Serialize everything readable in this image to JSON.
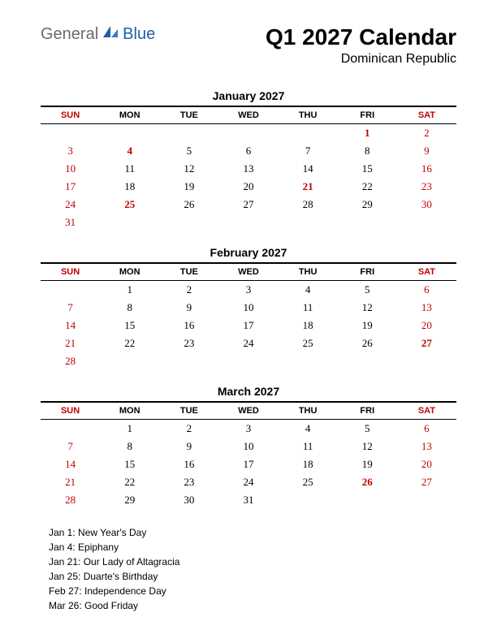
{
  "logo": {
    "text1": "General",
    "text2": "Blue",
    "icon_color": "#1e5fa8",
    "text1_color": "#6a6a6a",
    "text2_color": "#1e5fa8"
  },
  "title": "Q1 2027 Calendar",
  "subtitle": "Dominican Republic",
  "day_headers": [
    "SUN",
    "MON",
    "TUE",
    "WED",
    "THU",
    "FRI",
    "SAT"
  ],
  "colors": {
    "weekend": "#c00000",
    "holiday": "#c00000",
    "text": "#000000",
    "border": "#000000"
  },
  "fonts": {
    "header_family": "Arial",
    "body_family": "Georgia",
    "title_size": 28,
    "month_size": 14,
    "dayhead_size": 11,
    "cell_size": 13,
    "holiday_size": 12
  },
  "months": [
    {
      "name": "January 2027",
      "weeks": [
        [
          null,
          null,
          null,
          null,
          null,
          {
            "d": 1,
            "red": true,
            "bold": true
          },
          {
            "d": 2,
            "red": true
          }
        ],
        [
          {
            "d": 3,
            "red": true
          },
          {
            "d": 4,
            "red": true,
            "bold": true
          },
          {
            "d": 5
          },
          {
            "d": 6
          },
          {
            "d": 7
          },
          {
            "d": 8
          },
          {
            "d": 9,
            "red": true
          }
        ],
        [
          {
            "d": 10,
            "red": true
          },
          {
            "d": 11
          },
          {
            "d": 12
          },
          {
            "d": 13
          },
          {
            "d": 14
          },
          {
            "d": 15
          },
          {
            "d": 16,
            "red": true
          }
        ],
        [
          {
            "d": 17,
            "red": true
          },
          {
            "d": 18
          },
          {
            "d": 19
          },
          {
            "d": 20
          },
          {
            "d": 21,
            "red": true,
            "bold": true
          },
          {
            "d": 22
          },
          {
            "d": 23,
            "red": true
          }
        ],
        [
          {
            "d": 24,
            "red": true
          },
          {
            "d": 25,
            "red": true,
            "bold": true
          },
          {
            "d": 26
          },
          {
            "d": 27
          },
          {
            "d": 28
          },
          {
            "d": 29
          },
          {
            "d": 30,
            "red": true
          }
        ],
        [
          {
            "d": 31,
            "red": true
          },
          null,
          null,
          null,
          null,
          null,
          null
        ]
      ]
    },
    {
      "name": "February 2027",
      "weeks": [
        [
          null,
          {
            "d": 1
          },
          {
            "d": 2
          },
          {
            "d": 3
          },
          {
            "d": 4
          },
          {
            "d": 5
          },
          {
            "d": 6,
            "red": true
          }
        ],
        [
          {
            "d": 7,
            "red": true
          },
          {
            "d": 8
          },
          {
            "d": 9
          },
          {
            "d": 10
          },
          {
            "d": 11
          },
          {
            "d": 12
          },
          {
            "d": 13,
            "red": true
          }
        ],
        [
          {
            "d": 14,
            "red": true
          },
          {
            "d": 15
          },
          {
            "d": 16
          },
          {
            "d": 17
          },
          {
            "d": 18
          },
          {
            "d": 19
          },
          {
            "d": 20,
            "red": true
          }
        ],
        [
          {
            "d": 21,
            "red": true
          },
          {
            "d": 22
          },
          {
            "d": 23
          },
          {
            "d": 24
          },
          {
            "d": 25
          },
          {
            "d": 26
          },
          {
            "d": 27,
            "red": true,
            "bold": true
          }
        ],
        [
          {
            "d": 28,
            "red": true
          },
          null,
          null,
          null,
          null,
          null,
          null
        ]
      ]
    },
    {
      "name": "March 2027",
      "weeks": [
        [
          null,
          {
            "d": 1
          },
          {
            "d": 2
          },
          {
            "d": 3
          },
          {
            "d": 4
          },
          {
            "d": 5
          },
          {
            "d": 6,
            "red": true
          }
        ],
        [
          {
            "d": 7,
            "red": true
          },
          {
            "d": 8
          },
          {
            "d": 9
          },
          {
            "d": 10
          },
          {
            "d": 11
          },
          {
            "d": 12
          },
          {
            "d": 13,
            "red": true
          }
        ],
        [
          {
            "d": 14,
            "red": true
          },
          {
            "d": 15
          },
          {
            "d": 16
          },
          {
            "d": 17
          },
          {
            "d": 18
          },
          {
            "d": 19
          },
          {
            "d": 20,
            "red": true
          }
        ],
        [
          {
            "d": 21,
            "red": true
          },
          {
            "d": 22
          },
          {
            "d": 23
          },
          {
            "d": 24
          },
          {
            "d": 25
          },
          {
            "d": 26,
            "red": true,
            "bold": true
          },
          {
            "d": 27,
            "red": true
          }
        ],
        [
          {
            "d": 28,
            "red": true
          },
          {
            "d": 29
          },
          {
            "d": 30
          },
          {
            "d": 31
          },
          null,
          null,
          null
        ]
      ]
    }
  ],
  "holidays": [
    "Jan 1: New Year's Day",
    "Jan 4: Epiphany",
    "Jan 21: Our Lady of Altagracia",
    "Jan 25: Duarte's Birthday",
    "Feb 27: Independence Day",
    "Mar 26: Good Friday"
  ]
}
